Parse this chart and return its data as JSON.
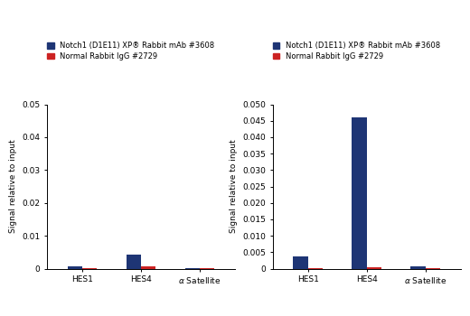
{
  "left_chart": {
    "categories": [
      "HES1",
      "HES4",
      "α Satellite"
    ],
    "notch1_values": [
      0.0008,
      0.0042,
      3e-05
    ],
    "igg_values": [
      0.00025,
      0.00055,
      3e-05
    ],
    "ylim": [
      0,
      0.05
    ],
    "yticks": [
      0,
      0.01,
      0.02,
      0.03,
      0.04,
      0.05
    ],
    "ytick_labels": [
      "0",
      "0.01",
      "0.02",
      "0.03",
      "0.04",
      "0.05"
    ]
  },
  "right_chart": {
    "categories": [
      "HES1",
      "HES4",
      "α Satellite"
    ],
    "notch1_values": [
      0.0038,
      0.046,
      0.00055
    ],
    "igg_values": [
      0.00015,
      0.00035,
      0.0001
    ],
    "ylim": [
      0,
      0.05
    ],
    "yticks": [
      0,
      0.005,
      0.01,
      0.015,
      0.02,
      0.025,
      0.03,
      0.035,
      0.04,
      0.045,
      0.05
    ],
    "ytick_labels": [
      "0",
      "0.005",
      "0.010",
      "0.015",
      "0.020",
      "0.025",
      "0.030",
      "0.035",
      "0.040",
      "0.045",
      "0.050"
    ]
  },
  "bar_width": 0.25,
  "notch1_color": "#1e3575",
  "igg_color": "#cc2222",
  "ylabel": "Signal relative to input",
  "legend_label_notch1": "Notch1 (D1E11) XP® Rabbit mAb #3608",
  "legend_label_igg": "Normal Rabbit IgG #2729",
  "background_color": "#ffffff",
  "axes_bg_color": "#ffffff",
  "fontsize_ticks": 6.5,
  "fontsize_ylabel": 6.5,
  "fontsize_legend": 6.0
}
